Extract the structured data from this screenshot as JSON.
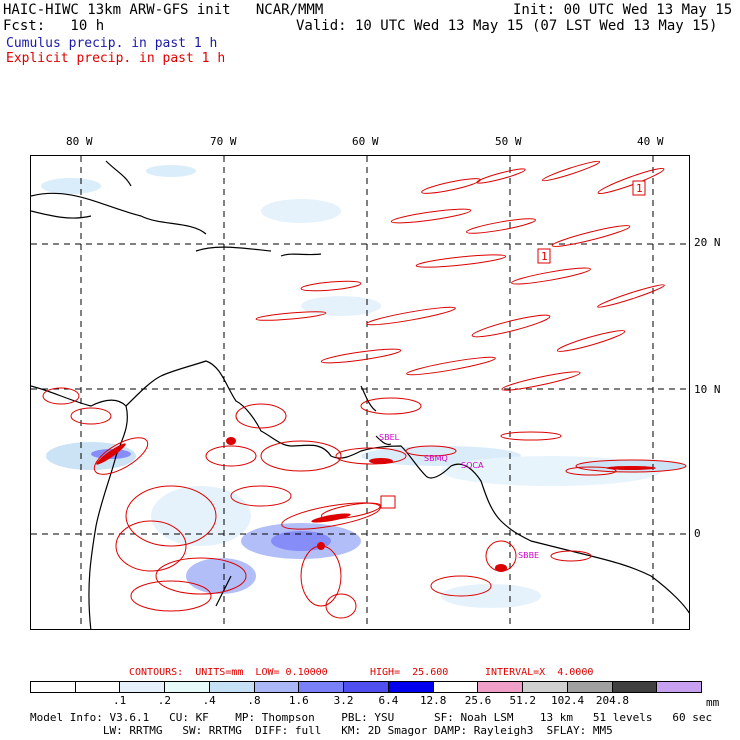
{
  "header": {
    "title": "HAIC-HIWC 13km ARW-GFS init   NCAR/MMM",
    "init": "Init: 00 UTC Wed 13 May 15",
    "fcst": "Fcst:   10 h",
    "valid": "Valid: 10 UTC Wed 13 May 15 (07 LST Wed 13 May 15)",
    "cumulus": "Cumulus precip. in past 1 h",
    "explicit": "Explicit precip. in past 1 h"
  },
  "colors": {
    "cumulus_text": "#1a1aaa",
    "explicit_text": "#e00000",
    "contour": "#dd0000",
    "coast": "#000000",
    "station_label": "#cc00cc"
  },
  "map": {
    "lon_labels": [
      "80 W",
      "70 W",
      "60 W",
      "50 W",
      "40 W"
    ],
    "lat_labels": [
      "20 N",
      "10 N",
      "0"
    ],
    "box_labels": [
      "1",
      "1"
    ],
    "station_labels": [
      "SBEL",
      "SBMQ",
      "SOCA",
      "SBBE"
    ]
  },
  "contours_line": {
    "contours": "CONTOURS:  UNITS=mm  LOW= 0.10000",
    "high": "HIGH=  25.600",
    "interval": "INTERVAL=X  4.0000"
  },
  "legend": {
    "unit": "mm",
    "ticks": [
      ".1",
      ".2",
      ".4",
      ".8",
      "1.6",
      "3.2",
      "6.4",
      "12.8",
      "25.6",
      "51.2",
      "102.4",
      "204.8"
    ],
    "colors": [
      "#ffffff",
      "#ffffff",
      "#e6f0fa",
      "#e6fafa",
      "#c6e0f5",
      "#aab8f8",
      "#7a80f8",
      "#5050f0",
      "#0000f0",
      "#ffffff",
      "#f0a0c8",
      "#d0d0d0",
      "#a0a0a0",
      "#404040",
      "#c8a0f0"
    ]
  },
  "model_info": {
    "line1": "Model Info: V3.6.1   CU: KF    MP: Thompson    PBL: YSU      SF: Noah LSM    13 km   51 levels   60 sec",
    "line2": "           LW: RRTMG   SW: RRTMG  DIFF: full   KM: 2D Smagor DAMP: Rayleigh3  SFLAY: MM5"
  }
}
